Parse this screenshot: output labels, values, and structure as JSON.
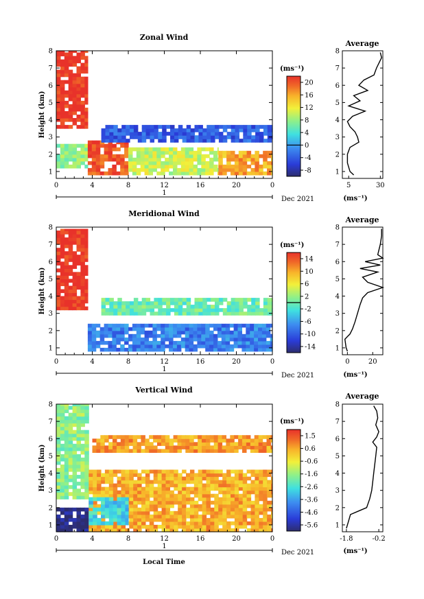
{
  "chart_data": [
    {
      "type": "heatmap",
      "title": "Zonal Wind",
      "ylabel": "Height (km)",
      "xlabel": "",
      "x_ticks": [
        "0",
        "4",
        "8",
        "12",
        "16",
        "20",
        "0"
      ],
      "y_ticks": [
        "1",
        "2",
        "3",
        "4",
        "5",
        "6",
        "7",
        "8"
      ],
      "xlim": [
        0,
        24
      ],
      "ylim": [
        0.6,
        8
      ],
      "day_axis_label": "1",
      "date_label": "Dec 2021",
      "colorbar": {
        "unit": "(ms⁻¹)",
        "ticks": [
          "20",
          "16",
          "12",
          "8",
          "4",
          "0",
          "-4",
          "-8"
        ],
        "range": [
          -10,
          22
        ],
        "zero_line": 0
      },
      "features": [
        {
          "t": [
            0,
            3.5
          ],
          "h": [
            3.5,
            8.0
          ],
          "v": 22
        },
        {
          "t": [
            0,
            3.5
          ],
          "h": [
            1.2,
            2.6
          ],
          "v": 8
        },
        {
          "t": [
            3.5,
            8
          ],
          "h": [
            0.8,
            2.8
          ],
          "v": 20
        },
        {
          "t": [
            8,
            18
          ],
          "h": [
            0.8,
            2.4
          ],
          "v": 10
        },
        {
          "t": [
            18,
            24
          ],
          "h": [
            0.8,
            2.2
          ],
          "v": 16
        },
        {
          "t": [
            5,
            24
          ],
          "h": [
            2.7,
            3.7
          ],
          "v": -4
        }
      ],
      "profile": {
        "title": "Average",
        "xlabel": "(ms⁻¹)",
        "x_ticks": [
          "5",
          "30"
        ],
        "xlim": [
          0,
          32
        ],
        "heights": [
          0.8,
          1.0,
          1.5,
          2.0,
          2.4,
          2.7,
          3.0,
          3.3,
          3.6,
          3.9,
          4.2,
          4.5,
          4.8,
          5.1,
          5.4,
          5.7,
          6.0,
          6.3,
          6.6,
          7.0,
          7.3,
          7.6,
          7.9
        ],
        "values": [
          9,
          6,
          4,
          4,
          6,
          13,
          12,
          10,
          6,
          4,
          8,
          18,
          5,
          14,
          9,
          20,
          13,
          17,
          25,
          27,
          29,
          31,
          30
        ]
      }
    },
    {
      "type": "heatmap",
      "title": "Meridional Wind",
      "ylabel": "Height (km)",
      "xlabel": "",
      "x_ticks": [
        "0",
        "4",
        "8",
        "12",
        "16",
        "20",
        "0"
      ],
      "y_ticks": [
        "1",
        "2",
        "3",
        "4",
        "5",
        "6",
        "7",
        "8"
      ],
      "xlim": [
        0,
        24
      ],
      "ylim": [
        0.6,
        8
      ],
      "day_axis_label": "1",
      "date_label": "Dec 2021",
      "colorbar": {
        "unit": "(ms⁻¹)",
        "ticks": [
          "14",
          "10",
          "6",
          "2",
          "-2",
          "-6",
          "-10",
          "-14"
        ],
        "range": [
          -16,
          16
        ],
        "zero_line": 0
      },
      "features": [
        {
          "t": [
            0,
            3.5
          ],
          "h": [
            3.2,
            7.9
          ],
          "v": 16
        },
        {
          "t": [
            3.5,
            24
          ],
          "h": [
            0.8,
            2.4
          ],
          "v": -8
        },
        {
          "t": [
            5,
            24
          ],
          "h": [
            2.9,
            3.9
          ],
          "v": 0
        }
      ],
      "profile": {
        "title": "Average",
        "xlabel": "(ms⁻¹)",
        "x_ticks": [
          "0",
          "20"
        ],
        "xlim": [
          -4,
          28
        ],
        "heights": [
          0.8,
          1.0,
          1.5,
          1.8,
          2.1,
          2.5,
          3.0,
          3.5,
          3.9,
          4.2,
          4.5,
          4.8,
          5.1,
          5.4,
          5.6,
          5.8,
          6.0,
          6.2,
          6.4,
          7.0,
          7.5,
          7.9
        ],
        "values": [
          0,
          -1,
          -2,
          2,
          4,
          6,
          8,
          10,
          12,
          16,
          28,
          16,
          12,
          24,
          10,
          26,
          14,
          28,
          24,
          26,
          27,
          27
        ]
      }
    },
    {
      "type": "heatmap",
      "title": "Vertical Wind",
      "ylabel": "Height (km)",
      "xlabel": "Local Time",
      "x_ticks": [
        "0",
        "4",
        "8",
        "12",
        "16",
        "20",
        "0"
      ],
      "y_ticks": [
        "1",
        "2",
        "3",
        "4",
        "5",
        "6",
        "7",
        "8"
      ],
      "xlim": [
        0,
        24
      ],
      "ylim": [
        0.6,
        8
      ],
      "day_axis_label": "1",
      "date_label": "Dec 2021",
      "colorbar": {
        "unit": "(ms⁻¹)",
        "ticks": [
          "1.5",
          "0.6",
          "-0.6",
          "-1.6",
          "-2.6",
          "-3.6",
          "-4.6",
          "-5.6"
        ],
        "range": [
          -6,
          2
        ]
      },
      "features": [
        {
          "t": [
            0,
            3.6
          ],
          "h": [
            2.5,
            8.0
          ],
          "v": -1.6
        },
        {
          "t": [
            0,
            3.6
          ],
          "h": [
            0.6,
            2.0
          ],
          "v": -6
        },
        {
          "t": [
            3.6,
            24
          ],
          "h": [
            0.6,
            4.2
          ],
          "v": 0.4
        },
        {
          "t": [
            3.6,
            8
          ],
          "h": [
            1.0,
            2.6
          ],
          "v": -2.8
        },
        {
          "t": [
            4,
            24
          ],
          "h": [
            5.2,
            6.2
          ],
          "v": 0.6
        }
      ],
      "profile": {
        "title": "Average",
        "xlabel": "(ms⁻¹)",
        "x_ticks": [
          "-1.8",
          "-0.2"
        ],
        "xlim": [
          -2.0,
          0.0
        ],
        "heights": [
          0.8,
          1.2,
          1.6,
          1.8,
          2.0,
          2.5,
          3.0,
          3.5,
          4.0,
          4.5,
          5.0,
          5.5,
          5.8,
          6.1,
          6.4,
          6.8,
          7.2,
          7.6,
          7.9
        ],
        "values": [
          -1.8,
          -1.7,
          -1.6,
          -1.2,
          -0.8,
          -0.65,
          -0.55,
          -0.5,
          -0.45,
          -0.4,
          -0.35,
          -0.3,
          -0.5,
          -0.3,
          -0.2,
          -0.35,
          -0.25,
          -0.3,
          -0.45
        ]
      }
    }
  ]
}
